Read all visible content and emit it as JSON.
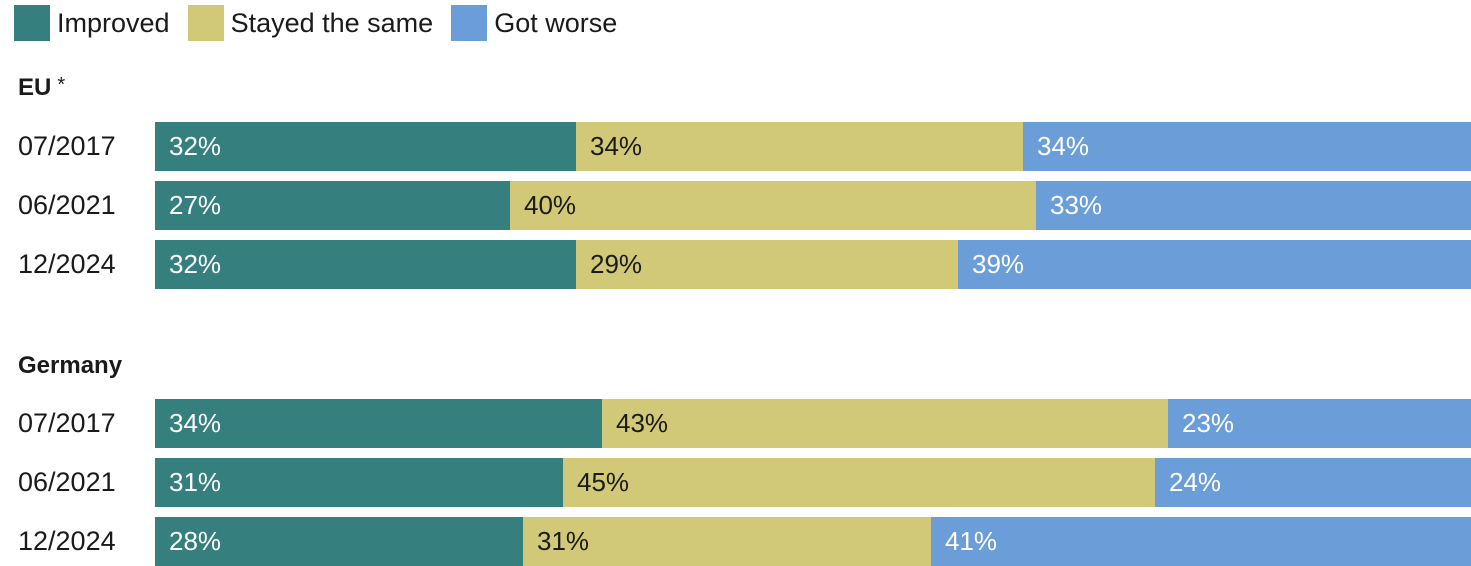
{
  "legend": [
    {
      "label": "Improved",
      "color": "#357f7f"
    },
    {
      "label": "Stayed the same",
      "color": "#d1c977"
    },
    {
      "label": "Got worse",
      "color": "#6b9ed9"
    }
  ],
  "chart_data": {
    "type": "bar",
    "orientation": "horizontal",
    "stacked": true,
    "series_names": [
      "Improved",
      "Stayed the same",
      "Got worse"
    ],
    "groups": [
      {
        "title": "EU",
        "title_suffix": "*",
        "rows": [
          {
            "label": "07/2017",
            "values": [
              32,
              34,
              34
            ],
            "value_labels": [
              "32%",
              "34%",
              "34%"
            ]
          },
          {
            "label": "06/2021",
            "values": [
              27,
              40,
              33
            ],
            "value_labels": [
              "27%",
              "40%",
              "33%"
            ]
          },
          {
            "label": "12/2024",
            "values": [
              32,
              29,
              39
            ],
            "value_labels": [
              "32%",
              "29%",
              "39%"
            ]
          }
        ]
      },
      {
        "title": "Germany",
        "title_suffix": "",
        "rows": [
          {
            "label": "07/2017",
            "values": [
              34,
              43,
              23
            ],
            "value_labels": [
              "34%",
              "43%",
              "23%"
            ]
          },
          {
            "label": "06/2021",
            "values": [
              31,
              45,
              24
            ],
            "value_labels": [
              "31%",
              "45%",
              "24%"
            ]
          },
          {
            "label": "12/2024",
            "values": [
              28,
              31,
              41
            ],
            "value_labels": [
              "28%",
              "31%",
              "41%"
            ]
          }
        ]
      }
    ],
    "xlim": [
      0,
      100
    ],
    "legend_position": "top-left",
    "grid": false
  }
}
